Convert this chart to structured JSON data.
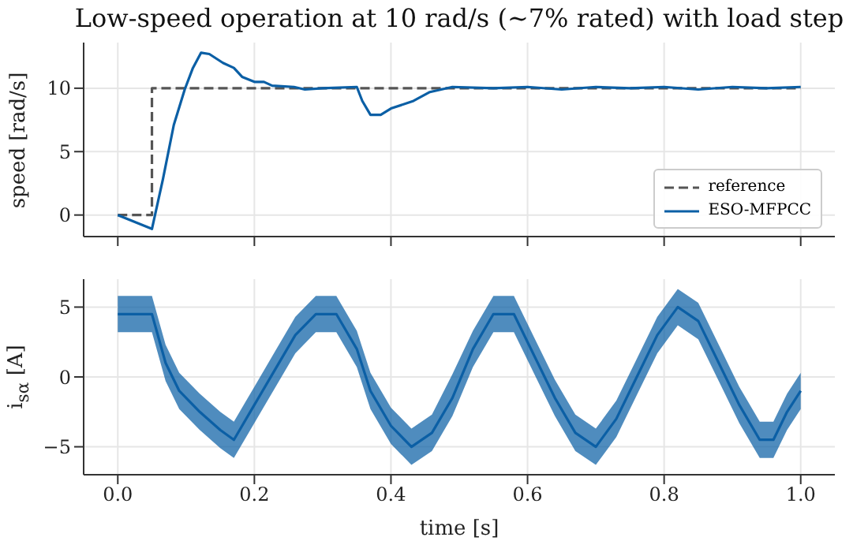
{
  "chart_data": [
    {
      "type": "line",
      "title": "Low-speed operation at 10 rad/s (~7% rated) with load step",
      "ylabel": "speed [rad/s]",
      "xlim": [
        -0.05,
        1.05
      ],
      "ylim": [
        -1.7,
        13.6
      ],
      "yticks": [
        0,
        5,
        10
      ],
      "grid": true,
      "legend": "bottom right",
      "tick_labels": "y",
      "marker": "none",
      "xticks": [
        {
          "value": 0,
          "label": null
        },
        {
          "value": 0.2,
          "label": null
        },
        {
          "value": 0.4,
          "label": null
        },
        {
          "value": 0.6,
          "label": null
        },
        {
          "value": 0.8,
          "label": null
        },
        {
          "value": 1,
          "label": null
        }
      ],
      "series": [
        {
          "name": "reference",
          "color": "#555555",
          "line_style": "dashed",
          "x": [
            0,
            0.05,
            0.05,
            1.0
          ],
          "values": [
            0,
            0,
            10,
            10
          ]
        },
        {
          "name": "ESO-MFPCC",
          "color": "#0b5fa5",
          "line_style": "solid",
          "x": [
            0,
            0.05,
            0.066,
            0.082,
            0.098,
            0.11,
            0.122,
            0.134,
            0.154,
            0.17,
            0.182,
            0.2,
            0.214,
            0.226,
            0.258,
            0.274,
            0.3,
            0.35,
            0.358,
            0.37,
            0.385,
            0.4,
            0.433,
            0.457,
            0.49,
            0.55,
            0.6,
            0.65,
            0.7,
            0.75,
            0.8,
            0.85,
            0.9,
            0.95,
            1.0
          ],
          "values": [
            0,
            -1.1,
            2.8,
            7.1,
            9.9,
            11.6,
            12.8,
            12.7,
            12.0,
            11.6,
            10.9,
            10.5,
            10.5,
            10.2,
            10.1,
            9.9,
            10.0,
            10.1,
            9.0,
            7.9,
            7.9,
            8.4,
            9.0,
            9.7,
            10.1,
            10.0,
            10.1,
            9.9,
            10.1,
            10.0,
            10.1,
            9.9,
            10.1,
            10.0,
            10.1
          ]
        }
      ]
    },
    {
      "type": "line",
      "ylabel": "i$_{sα}$ [A]",
      "xlabel": "time [s]",
      "xlim": [
        -0.05,
        1.05
      ],
      "xticks": [
        {
          "value": 0,
          "label": "0.0"
        },
        {
          "value": 0.2,
          "label": "0.2"
        },
        {
          "value": 0.4,
          "label": "0.4"
        },
        {
          "value": 0.6,
          "label": "0.6"
        },
        {
          "value": 0.8,
          "label": "0.8"
        },
        {
          "value": 1,
          "label": "1.0"
        }
      ],
      "ylim": [
        -7,
        7
      ],
      "yticks": [
        -5,
        0,
        5
      ],
      "grid": true,
      "marker": "none",
      "x": [
        0,
        0.05,
        0.07,
        0.09,
        0.12,
        0.15,
        0.17,
        0.2,
        0.23,
        0.26,
        0.29,
        0.32,
        0.35,
        0.37,
        0.4,
        0.43,
        0.46,
        0.49,
        0.52,
        0.55,
        0.58,
        0.61,
        0.64,
        0.67,
        0.7,
        0.73,
        0.76,
        0.79,
        0.82,
        0.85,
        0.88,
        0.91,
        0.94,
        0.96,
        0.98,
        1.0
      ],
      "series": [
        {
          "color": "#0b5fa5",
          "line_style": "solid",
          "values": [
            4.5,
            4.5,
            1,
            -1,
            -2.5,
            -3.8,
            -4.5,
            -2,
            0.5,
            3,
            4.5,
            4.5,
            2,
            -1,
            -3.5,
            -5,
            -4,
            -1.5,
            2,
            4.5,
            4.5,
            1.5,
            -1.5,
            -4,
            -5,
            -3,
            0,
            3,
            5,
            4,
            1,
            -2,
            -4.5,
            -4.5,
            -2.5,
            -1
          ],
          "lower": [
            3.2,
            3.2,
            -0.3,
            -2.3,
            -3.8,
            -5.1,
            -5.8,
            -3.3,
            -0.8,
            1.7,
            3.2,
            3.2,
            0.7,
            -2.3,
            -4.8,
            -6.3,
            -5.3,
            -2.8,
            0.7,
            3.2,
            3.2,
            0.2,
            -2.8,
            -5.3,
            -6.3,
            -4.3,
            -1.3,
            1.7,
            3.7,
            2.7,
            -0.3,
            -3.3,
            -5.8,
            -5.8,
            -3.8,
            -2.3
          ],
          "upper": [
            5.8,
            5.8,
            2.3,
            0.3,
            -1.2,
            -2.5,
            -3.2,
            -0.7,
            1.8,
            4.3,
            5.8,
            5.8,
            3.3,
            0.3,
            -2.2,
            -3.7,
            -2.7,
            0.2,
            3.3,
            5.8,
            5.8,
            2.8,
            -0.2,
            -2.7,
            -3.7,
            -1.7,
            1.3,
            4.3,
            6.3,
            5.3,
            2.3,
            -0.7,
            -3.2,
            -3.2,
            -1.2,
            0.3
          ]
        }
      ]
    }
  ]
}
